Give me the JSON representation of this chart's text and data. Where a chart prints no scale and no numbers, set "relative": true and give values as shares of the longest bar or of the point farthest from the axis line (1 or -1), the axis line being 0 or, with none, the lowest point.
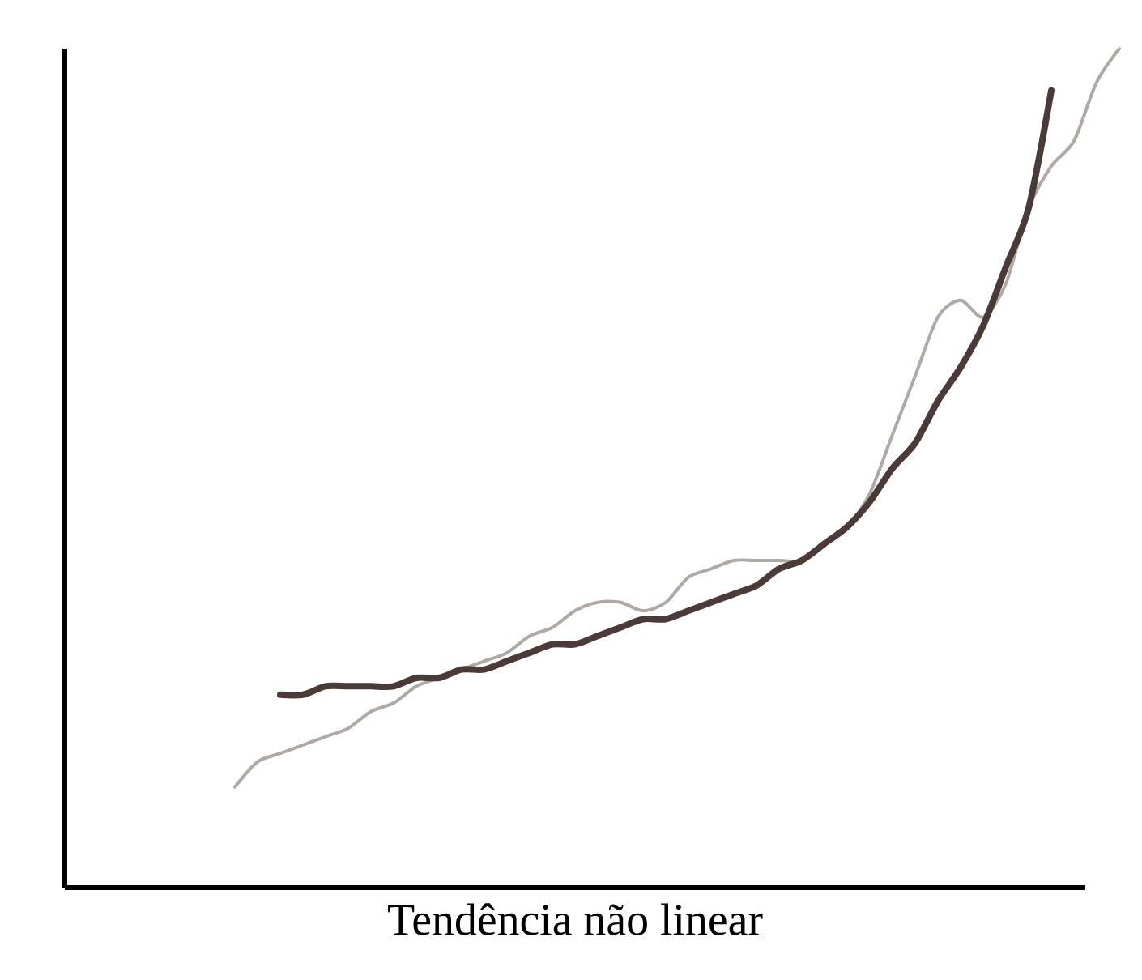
{
  "chart_data": {
    "type": "line",
    "relative": true,
    "xlabel": "Tendência não linear",
    "categories": [
      null,
      null,
      null,
      null,
      null,
      null,
      null,
      null,
      null,
      null,
      null,
      null,
      null,
      null,
      null,
      null,
      null,
      null,
      null,
      null,
      null,
      null,
      null,
      null,
      null,
      null,
      null,
      null,
      null,
      null,
      null,
      null,
      null,
      null,
      null,
      null,
      null,
      null,
      null,
      null
    ],
    "series": [
      {
        "color": "#b0a8a4",
        "values": [
          0.12,
          0.15,
          0.16,
          0.17,
          0.18,
          0.19,
          0.21,
          0.22,
          0.24,
          0.25,
          0.26,
          0.27,
          0.28,
          0.3,
          0.31,
          0.33,
          0.34,
          0.34,
          0.33,
          0.34,
          0.37,
          0.38,
          0.39,
          0.39,
          0.39,
          0.39,
          0.41,
          0.43,
          0.47,
          0.54,
          0.61,
          0.68,
          0.7,
          0.68,
          0.72,
          0.81,
          0.86,
          0.89,
          0.96,
          1.0
        ]
      },
      {
        "color": "#4a3a38",
        "values": [
          null,
          null,
          0.23,
          0.23,
          0.24,
          0.24,
          0.24,
          0.24,
          0.25,
          0.25,
          0.26,
          0.26,
          0.27,
          0.28,
          0.29,
          0.29,
          0.3,
          0.31,
          0.32,
          0.32,
          0.33,
          0.34,
          0.35,
          0.36,
          0.38,
          0.39,
          0.41,
          0.43,
          0.46,
          0.5,
          0.53,
          0.58,
          0.62,
          0.67,
          0.74,
          0.81,
          0.95,
          null,
          null,
          null
        ]
      }
    ]
  }
}
